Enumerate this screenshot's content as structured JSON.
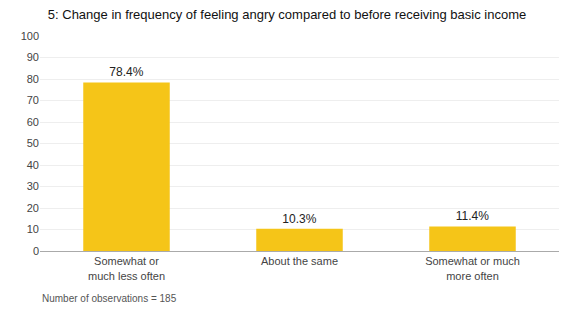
{
  "chart_data": {
    "type": "bar",
    "title": "5: Change in frequency of feeling angry compared to before receiving basic income",
    "categories": [
      "Somewhat or\nmuch less often",
      "About the same",
      "Somewhat or much\nmore often"
    ],
    "values": [
      78.4,
      10.3,
      11.4
    ],
    "value_labels": [
      "78.4%",
      "10.3%",
      "11.4%"
    ],
    "data_labels": true,
    "color": "#F5C518",
    "ylim": [
      0,
      100
    ],
    "yticks": [
      0,
      10,
      20,
      30,
      40,
      50,
      60,
      70,
      80,
      90,
      100
    ],
    "grid": true,
    "annotations": [
      "Number of observations = 185"
    ]
  }
}
